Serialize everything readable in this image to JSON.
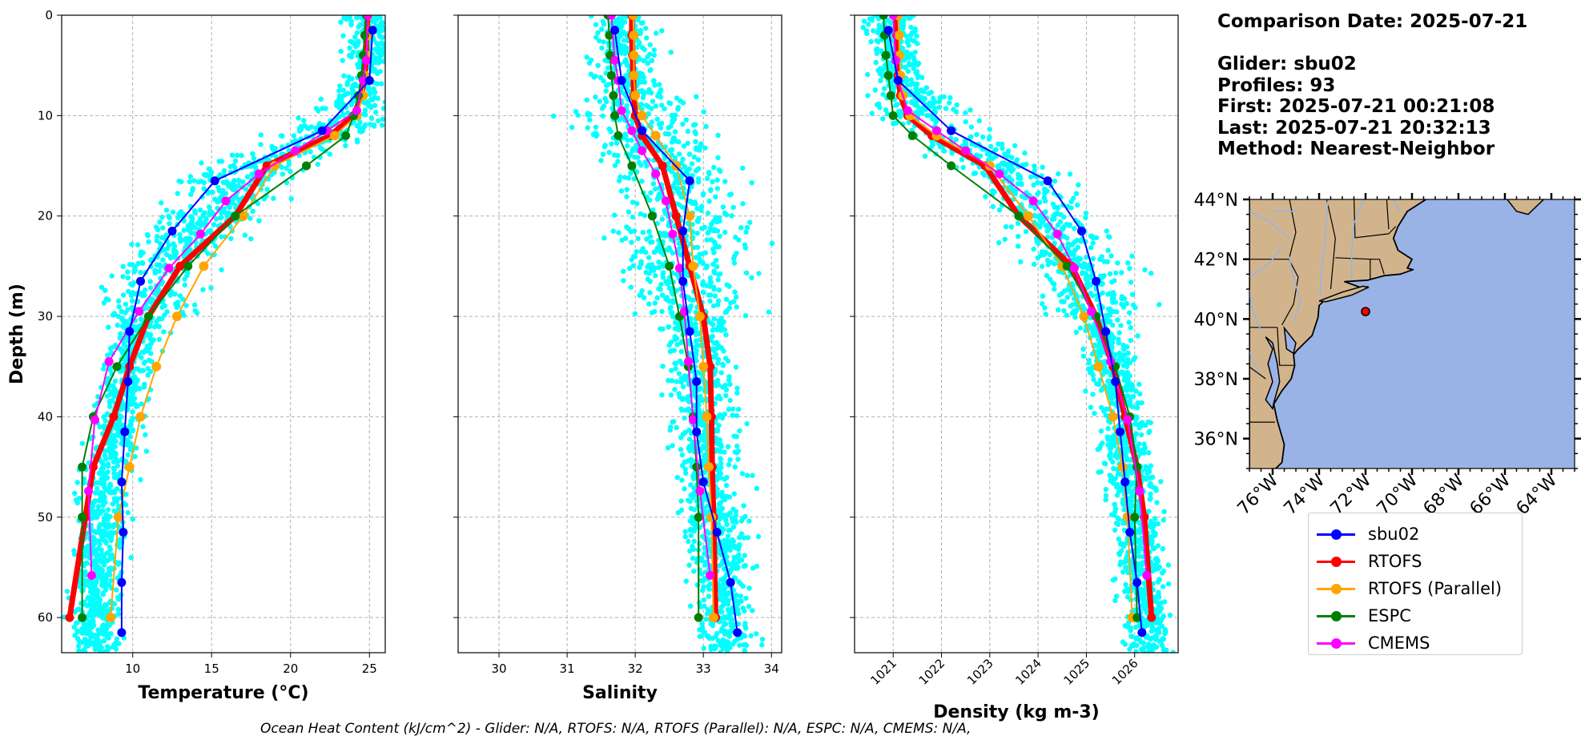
{
  "info": {
    "comparison_date": "Comparison Date: 2025-07-21",
    "glider": "Glider: sbu02",
    "profiles": "Profiles: 93",
    "first": "First: 2025-07-21 00:21:08",
    "last": "Last: 2025-07-21 20:32:13",
    "method": "Method: Nearest-Neighbor"
  },
  "footer": "Ocean Heat Content (kJ/cm^2) - Glider: N/A,  RTOFS: N/A,  RTOFS (Parallel): N/A,  ESPC: N/A,  CMEMS: N/A,",
  "colors": {
    "glider_points": "#00ffff",
    "sbu02": "#0000ff",
    "RTOFS": "#ff0000",
    "RTOFS (Parallel)": "#ffa500",
    "ESPC": "#008000",
    "CMEMS": "#ff00ff",
    "land": "#d2b48c",
    "ocean": "#99b3e6",
    "rivers": "#99b3e6"
  },
  "legend": [
    {
      "name": "sbu02",
      "color": "#0000ff"
    },
    {
      "name": "RTOFS",
      "color": "#ff0000"
    },
    {
      "name": "RTOFS (Parallel)",
      "color": "#ffa500"
    },
    {
      "name": "ESPC",
      "color": "#008000"
    },
    {
      "name": "CMEMS",
      "color": "#ff00ff"
    }
  ],
  "chart_data": [
    {
      "type": "line",
      "xlabel": "Temperature (°C)",
      "ylabel": "Depth (m)",
      "xlim": [
        5.5,
        26
      ],
      "ylim": [
        63.5,
        0
      ],
      "xticks": [
        "10",
        "15",
        "20",
        "25"
      ],
      "yticks": [
        "0",
        "10",
        "20",
        "30",
        "40",
        "50",
        "60"
      ],
      "grid": true,
      "series": [
        {
          "name": "sbu02",
          "depth": [
            1.5,
            6.5,
            11.5,
            16.5,
            21.5,
            26.5,
            31.5,
            36.5,
            41.5,
            46.5,
            51.5,
            56.5,
            61.5
          ],
          "values": [
            25.2,
            25.0,
            22.0,
            15.2,
            12.5,
            10.5,
            9.8,
            9.7,
            9.5,
            9.3,
            9.4,
            9.3,
            9.3
          ]
        },
        {
          "name": "RTOFS",
          "depth": [
            0,
            2,
            4,
            6,
            8,
            10,
            12,
            15,
            20,
            25,
            30,
            35,
            40,
            45,
            50,
            60
          ],
          "values": [
            24.9,
            24.8,
            24.8,
            24.7,
            24.5,
            24.0,
            22.5,
            18.5,
            16.5,
            13.0,
            11.0,
            9.8,
            8.8,
            7.5,
            7.0,
            6.0
          ]
        },
        {
          "name": "RTOFS (Parallel)",
          "depth": [
            0,
            2,
            4,
            6,
            8,
            10,
            12,
            15,
            20,
            25,
            30,
            35,
            40,
            45,
            50,
            60
          ],
          "values": [
            24.9,
            24.9,
            24.8,
            24.7,
            24.6,
            24.2,
            22.8,
            19.0,
            17.0,
            14.5,
            12.8,
            11.5,
            10.5,
            9.8,
            9.1,
            8.6
          ]
        },
        {
          "name": "ESPC",
          "depth": [
            0,
            2,
            4,
            6,
            8,
            10,
            12,
            15,
            20,
            25,
            30,
            35,
            40,
            45,
            50,
            60
          ],
          "values": [
            24.8,
            24.7,
            24.6,
            24.5,
            24.3,
            24.0,
            23.5,
            21.0,
            16.5,
            13.5,
            11.0,
            9.0,
            7.5,
            6.8,
            6.8,
            6.8
          ]
        },
        {
          "name": "CMEMS",
          "depth": [
            0,
            4.5,
            6.5,
            9.5,
            11.5,
            13.5,
            15.8,
            18.5,
            21.8,
            25.2,
            29.5,
            34.5,
            40.3,
            47.4,
            55.8
          ],
          "values": [
            24.9,
            24.8,
            24.6,
            24.2,
            22.3,
            20.3,
            18.0,
            15.9,
            14.3,
            12.3,
            10.4,
            8.5,
            7.6,
            7.2,
            7.4
          ]
        }
      ]
    },
    {
      "type": "line",
      "xlabel": "Salinity",
      "xlim": [
        29.4,
        34.15
      ],
      "ylim": [
        63.5,
        0
      ],
      "xticks": [
        "30",
        "31",
        "32",
        "33",
        "34"
      ],
      "grid": true,
      "series": [
        {
          "name": "sbu02",
          "depth": [
            1.5,
            6.5,
            11.5,
            16.5,
            21.5,
            26.5,
            31.5,
            36.5,
            41.5,
            46.5,
            51.5,
            56.5,
            61.5
          ],
          "values": [
            31.7,
            31.8,
            32.1,
            32.8,
            32.7,
            32.7,
            32.8,
            32.9,
            32.9,
            33.0,
            33.2,
            33.4,
            33.5
          ]
        },
        {
          "name": "RTOFS",
          "depth": [
            0,
            2,
            4,
            6,
            8,
            10,
            12,
            15,
            20,
            25,
            30,
            35,
            40,
            45,
            50,
            60
          ],
          "values": [
            31.95,
            31.95,
            31.96,
            31.97,
            31.98,
            32.0,
            32.1,
            32.4,
            32.6,
            32.8,
            33.0,
            33.1,
            33.12,
            33.13,
            33.15,
            33.18
          ]
        },
        {
          "name": "RTOFS (Parallel)",
          "depth": [
            0,
            2,
            4,
            6,
            8,
            10,
            12,
            15,
            20,
            25,
            30,
            35,
            40,
            45,
            50,
            60
          ],
          "values": [
            31.97,
            31.98,
            31.98,
            31.98,
            32.0,
            32.1,
            32.3,
            32.6,
            32.8,
            32.85,
            32.95,
            33.0,
            33.05,
            33.08,
            33.12,
            33.15
          ]
        },
        {
          "name": "ESPC",
          "depth": [
            0,
            2,
            4,
            6,
            8,
            10,
            12,
            15,
            20,
            25,
            30,
            35,
            40,
            45,
            50,
            60
          ],
          "values": [
            31.6,
            31.62,
            31.63,
            31.65,
            31.68,
            31.7,
            31.75,
            31.95,
            32.25,
            32.5,
            32.65,
            32.78,
            32.85,
            32.9,
            32.93,
            32.93
          ]
        },
        {
          "name": "CMEMS",
          "depth": [
            0,
            4.5,
            6.5,
            9.5,
            11.5,
            13.5,
            15.8,
            18.5,
            21.8,
            25.2,
            29.5,
            34.5,
            40.3,
            47.4,
            55.8
          ],
          "values": [
            31.65,
            31.7,
            31.75,
            31.8,
            31.95,
            32.1,
            32.3,
            32.45,
            32.55,
            32.65,
            32.72,
            32.78,
            32.85,
            32.95,
            33.1
          ]
        }
      ]
    },
    {
      "type": "line",
      "xlabel": "Density (kg m-3)",
      "xlim": [
        1020.2,
        1026.9
      ],
      "ylim": [
        63.5,
        0
      ],
      "xticks": [
        "1021",
        "1022",
        "1023",
        "1024",
        "1025",
        "1026"
      ],
      "grid": true,
      "series": [
        {
          "name": "sbu02",
          "depth": [
            1.5,
            6.5,
            11.5,
            16.5,
            21.5,
            26.5,
            31.5,
            36.5,
            41.5,
            46.5,
            51.5,
            56.5,
            61.5
          ],
          "values": [
            1020.9,
            1021.1,
            1022.2,
            1024.2,
            1024.9,
            1025.2,
            1025.4,
            1025.6,
            1025.7,
            1025.8,
            1025.9,
            1026.05,
            1026.15
          ]
        },
        {
          "name": "RTOFS",
          "depth": [
            0,
            2,
            4,
            6,
            8,
            10,
            12,
            15,
            20,
            25,
            30,
            35,
            40,
            45,
            50,
            60
          ],
          "values": [
            1021.05,
            1021.07,
            1021.08,
            1021.1,
            1021.15,
            1021.3,
            1021.8,
            1022.9,
            1023.6,
            1024.7,
            1025.2,
            1025.55,
            1025.8,
            1026.05,
            1026.2,
            1026.35
          ]
        },
        {
          "name": "RTOFS (Parallel)",
          "depth": [
            0,
            2,
            4,
            6,
            8,
            10,
            12,
            15,
            20,
            25,
            30,
            35,
            40,
            45,
            50,
            60
          ],
          "values": [
            1021.1,
            1021.12,
            1021.13,
            1021.15,
            1021.2,
            1021.35,
            1021.9,
            1023.0,
            1023.8,
            1024.5,
            1024.95,
            1025.25,
            1025.55,
            1025.75,
            1025.85,
            1025.95
          ]
        },
        {
          "name": "ESPC",
          "depth": [
            0,
            2,
            4,
            6,
            8,
            10,
            12,
            15,
            20,
            25,
            30,
            35,
            40,
            45,
            50,
            60
          ],
          "values": [
            1020.8,
            1020.82,
            1020.85,
            1020.9,
            1020.95,
            1021.0,
            1021.4,
            1022.2,
            1023.6,
            1024.6,
            1025.2,
            1025.6,
            1025.9,
            1026.05,
            1026.0,
            1026.05
          ]
        },
        {
          "name": "CMEMS",
          "depth": [
            0,
            4.5,
            6.5,
            9.5,
            11.5,
            13.5,
            15.8,
            18.5,
            21.8,
            25.2,
            29.5,
            34.5,
            40.3,
            47.4,
            55.8
          ],
          "values": [
            1021.0,
            1021.05,
            1021.1,
            1021.3,
            1021.9,
            1022.5,
            1023.2,
            1023.9,
            1024.4,
            1024.75,
            1025.1,
            1025.5,
            1025.85,
            1026.1,
            1026.25
          ]
        }
      ]
    }
  ],
  "map": {
    "lat_ticks": [
      "44°N",
      "42°N",
      "40°N",
      "38°N",
      "36°N"
    ],
    "lon_ticks": [
      "76°W",
      "74°W",
      "72°W",
      "70°W",
      "68°W",
      "66°W",
      "64°W"
    ],
    "extent_lon": [
      -77,
      -63
    ],
    "extent_lat": [
      35,
      44
    ],
    "glider_position": {
      "lon": -72.0,
      "lat": 40.25
    }
  }
}
